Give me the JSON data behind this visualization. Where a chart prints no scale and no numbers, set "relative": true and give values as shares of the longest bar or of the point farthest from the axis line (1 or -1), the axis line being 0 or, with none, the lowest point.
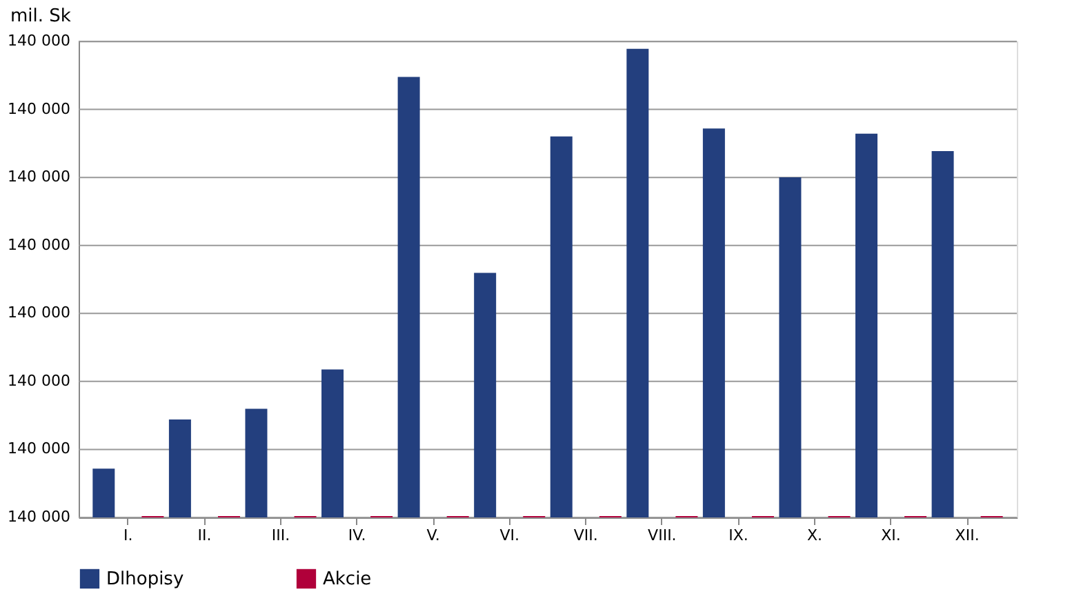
{
  "chart_data": {
    "type": "bar",
    "ylabel": "mil. Sk",
    "relative": true,
    "categories": [
      "I.",
      "II.",
      "III.",
      "IV.",
      "V.",
      "VI.",
      "VII.",
      "VIII.",
      "IX.",
      "X.",
      "XI.",
      "XII."
    ],
    "series": [
      {
        "name": "Dlhopisy",
        "color": "#233f7e",
        "values": [
          0.104,
          0.209,
          0.232,
          0.316,
          0.94,
          0.522,
          0.813,
          1,
          0.83,
          0.726,
          0.819,
          0.782
        ]
      },
      {
        "name": "Akcie",
        "color": "#b0003a",
        "values": [
          0.003,
          0.003,
          0.003,
          0.003,
          0.003,
          0.003,
          0.003,
          0.003,
          0.003,
          0.003,
          0.003,
          0.003
        ]
      }
    ],
    "annotations": [
      "140 000",
      "140 000",
      "140 000",
      "140 000",
      "140 000",
      "140 000",
      "140 000",
      "140 000"
    ],
    "grid": "y",
    "legend": "bottom"
  }
}
